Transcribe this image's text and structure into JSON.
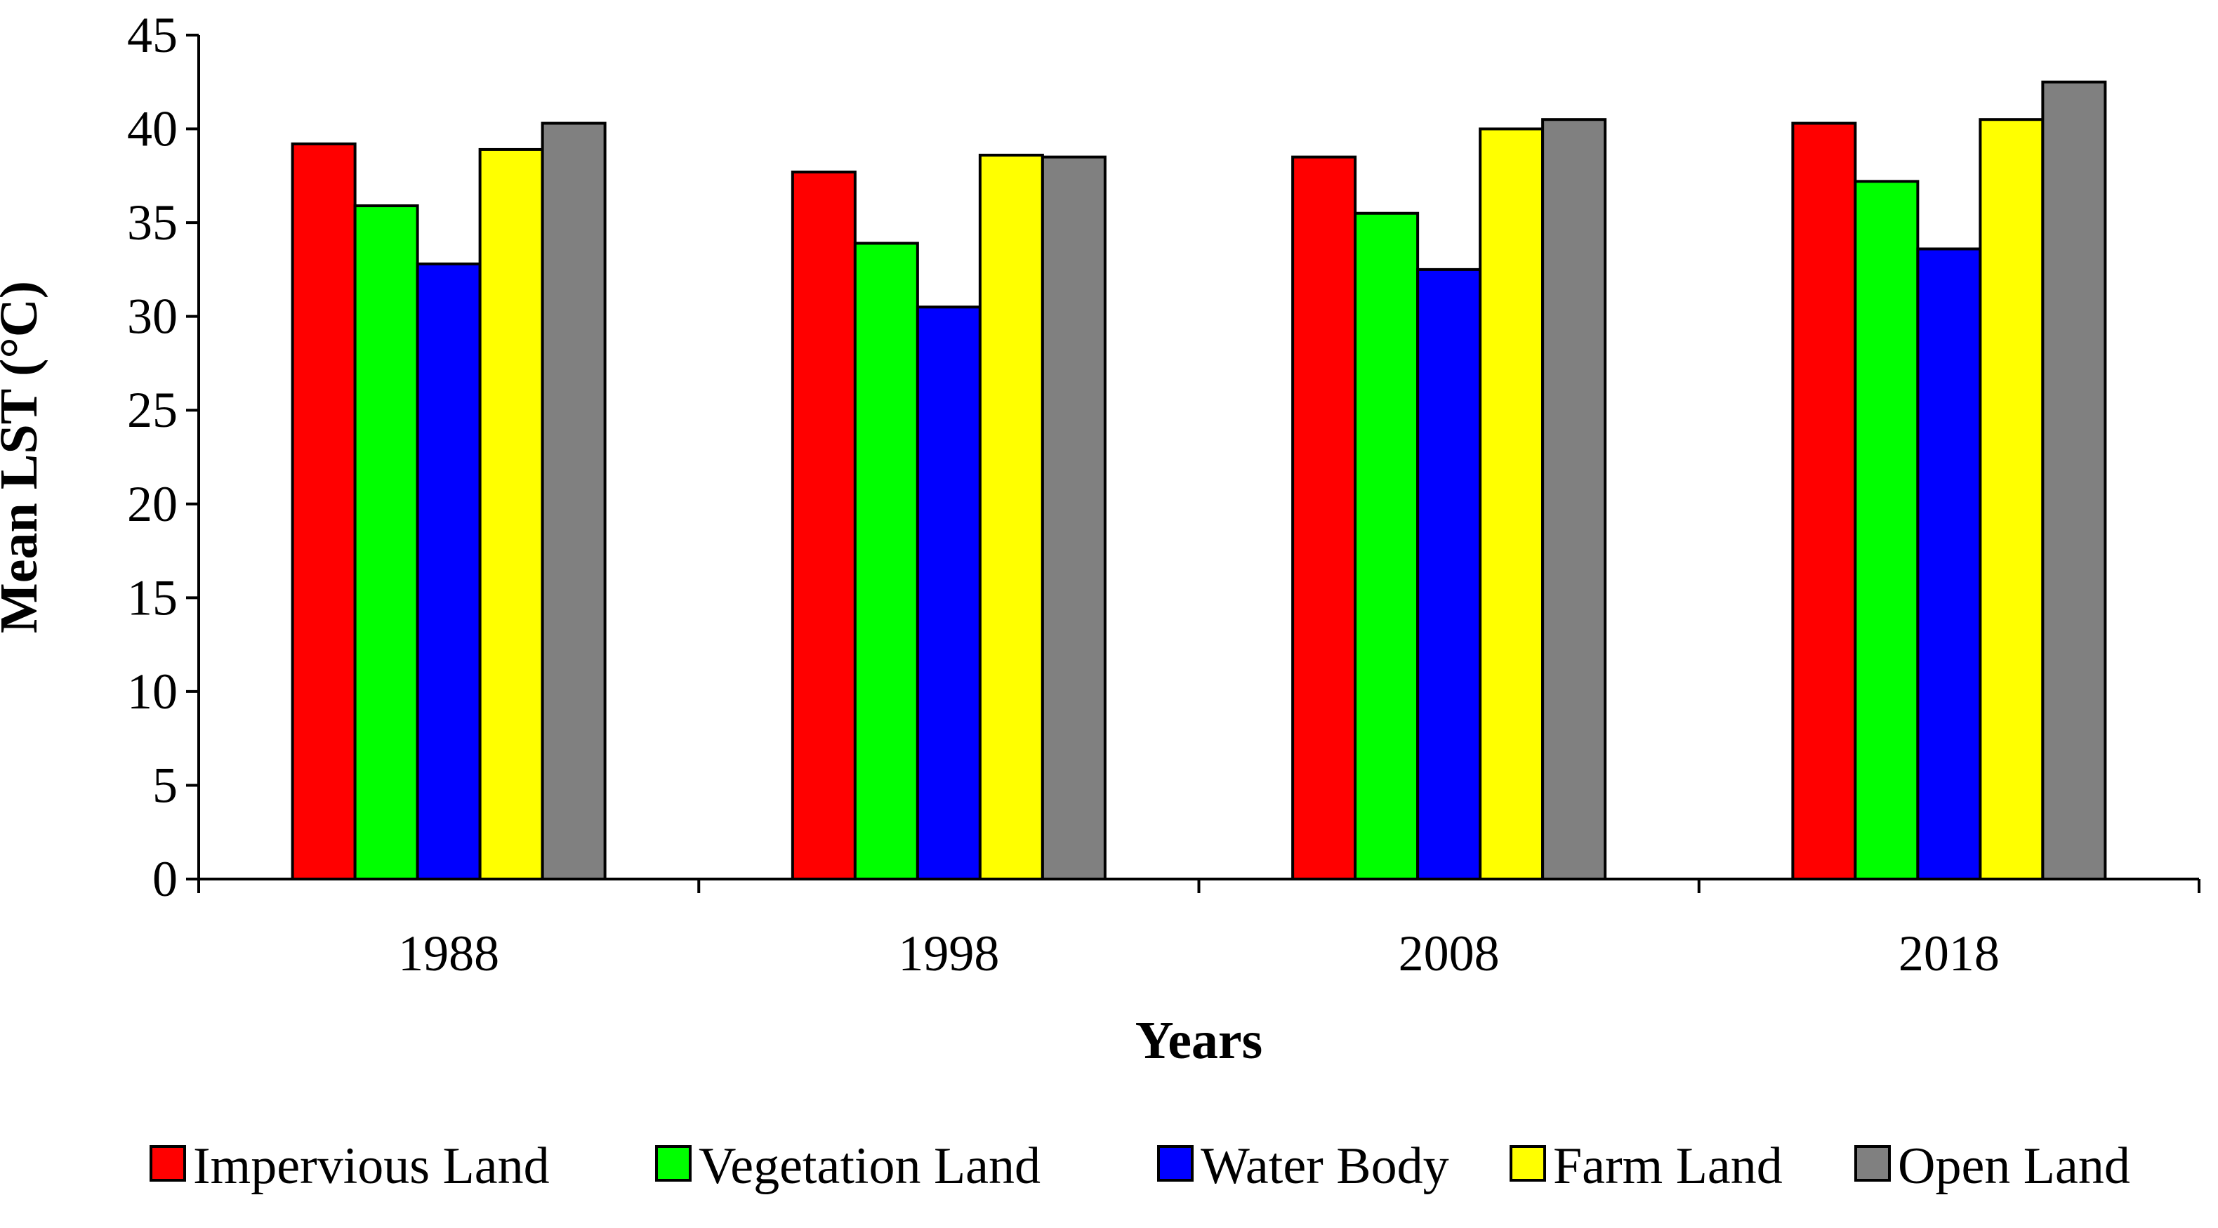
{
  "chart_data": {
    "type": "bar",
    "title": "",
    "xlabel": "Years",
    "ylabel": "Mean LST (°C)",
    "ylim": [
      0,
      45
    ],
    "yticks": [
      0,
      5,
      10,
      15,
      20,
      25,
      30,
      35,
      40,
      45
    ],
    "grid": false,
    "legend_position": "bottom",
    "categories": [
      "1988",
      "1998",
      "2008",
      "2018"
    ],
    "series": [
      {
        "name": "Impervious Land",
        "color": "#ff0000",
        "values": [
          39.2,
          37.7,
          38.5,
          40.3
        ]
      },
      {
        "name": "Vegetation Land",
        "color": "#00ff00",
        "values": [
          35.9,
          33.9,
          35.5,
          37.2
        ]
      },
      {
        "name": "Water Body",
        "color": "#0000ff",
        "values": [
          32.8,
          30.5,
          32.5,
          33.6
        ]
      },
      {
        "name": "Farm Land",
        "color": "#ffff00",
        "values": [
          38.9,
          38.6,
          40.0,
          40.5
        ]
      },
      {
        "name": "Open Land",
        "color": "#808080",
        "values": [
          40.3,
          38.5,
          40.5,
          42.5
        ]
      }
    ]
  }
}
